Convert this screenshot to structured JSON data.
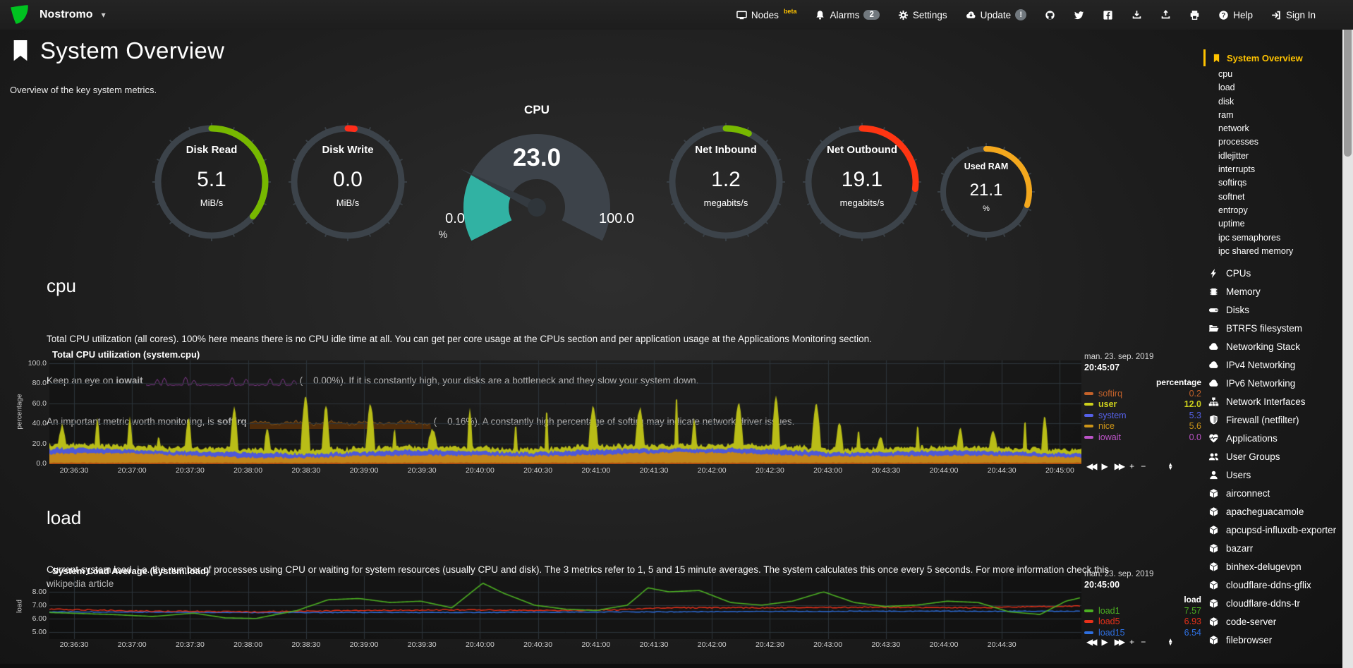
{
  "header": {
    "hostname": "Nostromo",
    "nav_items": [
      {
        "name": "nodes",
        "icon": "monitor-icon",
        "label": "Nodes",
        "sup": "beta"
      },
      {
        "name": "alarms",
        "icon": "bell-icon",
        "label": "Alarms",
        "badge": "2"
      },
      {
        "name": "settings",
        "icon": "gear-icon",
        "label": "Settings"
      },
      {
        "name": "update",
        "icon": "cloud-update-icon",
        "label": "Update",
        "badge": "!"
      },
      {
        "name": "github",
        "icon": "github-icon"
      },
      {
        "name": "twitter",
        "icon": "twitter-icon"
      },
      {
        "name": "facebook",
        "icon": "facebook-icon"
      },
      {
        "name": "import-snapshot",
        "icon": "download-icon"
      },
      {
        "name": "export-snapshot",
        "icon": "upload-icon"
      },
      {
        "name": "print",
        "icon": "print-icon"
      },
      {
        "name": "help",
        "icon": "question-icon",
        "label": "Help"
      },
      {
        "name": "signin",
        "icon": "signin-icon",
        "label": "Sign In"
      }
    ]
  },
  "page": {
    "title": "System Overview",
    "subtitle": "Overview of the key system metrics."
  },
  "gauges": [
    {
      "name": "disk-read",
      "title": "Disk Read",
      "value": "5.1",
      "unit": "MiB/s",
      "percent": 36,
      "color": "#77b800"
    },
    {
      "name": "disk-write",
      "title": "Disk Write",
      "value": "0.0",
      "unit": "MiB/s",
      "percent": 2,
      "color": "#ff2d1a"
    },
    {
      "name": "net-inbound",
      "title": "Net Inbound",
      "value": "1.2",
      "unit": "megabits/s",
      "percent": 7,
      "color": "#77b800"
    },
    {
      "name": "net-outbound",
      "title": "Net Outbound",
      "value": "19.1",
      "unit": "megabits/s",
      "percent": 27,
      "color": "#ff3512"
    },
    {
      "name": "used-ram",
      "title": "Used RAM",
      "value": "21.1",
      "unit": "%",
      "percent": 30,
      "color": "#f4a81d"
    }
  ],
  "cpu_gauge": {
    "title": "CPU",
    "value": "23.0",
    "min": "0.0",
    "max": "100.0",
    "unit": "%",
    "percent": 23,
    "fill_color": "#31b2a3"
  },
  "cpu_section": {
    "heading": "cpu",
    "line1": "Total CPU utilization (all cores). 100% here means there is no CPU idle time at all. You can get per core usage at the CPUs section and per application usage at the Applications Monitoring section.",
    "line2_pre": "Keep an eye on ",
    "line2_bold": "iowait",
    "line2_post": "(    0.00%). If it is constantly high, your disks are a bottleneck and they slow your system down.",
    "line3_pre": "An important metric worth monitoring, is ",
    "line3_bold": "softirq",
    "line3_post": "(    0.16%). A constantly high percentage of softirq may indicate network driver issues."
  },
  "load_section": {
    "heading": "load",
    "line1": "Current system load, i.e. the number of processes using CPU or waiting for system resources (usually CPU and disk). The 3 metrics refer to 1, 5 and 15 minute averages. The system calculates this once every 5 seconds. For more information check this wikipedia article"
  },
  "cpu_chart": {
    "title": "Total CPU utilization (system.cpu)",
    "date": "man. 23. sep. 2019",
    "time": "20:45:07",
    "unit_header": "percentage",
    "ylabel": "percentage",
    "y_ticks": [
      "100.0",
      "80.0",
      "60.0",
      "40.0",
      "20.0",
      "0.0"
    ],
    "x_ticks": [
      "20:36:30",
      "20:37:00",
      "20:37:30",
      "20:38:00",
      "20:38:30",
      "20:39:00",
      "20:39:30",
      "20:40:00",
      "20:40:30",
      "20:41:00",
      "20:41:30",
      "20:42:00",
      "20:42:30",
      "20:43:00",
      "20:43:30",
      "20:44:00",
      "20:44:30",
      "20:45:00"
    ],
    "legend": [
      {
        "label": "softirq",
        "value": "0.2",
        "color": "#c4622a"
      },
      {
        "label": "user",
        "value": "12.0",
        "color": "#cdd01c",
        "bold": true
      },
      {
        "label": "system",
        "value": "5.3",
        "color": "#5561e8"
      },
      {
        "label": "nice",
        "value": "5.6",
        "color": "#cc9418"
      },
      {
        "label": "iowait",
        "value": "0.0",
        "color": "#bc54c8"
      }
    ]
  },
  "load_chart": {
    "title": "System Load Average (system.load)",
    "date": "man. 23. sep. 2019",
    "time": "20:45:00",
    "unit_header": "load",
    "ylabel": "load",
    "y_ticks": [
      "8.00",
      "7.00",
      "6.00",
      "5.00"
    ],
    "x_ticks": [
      "20:36:30",
      "20:37:00",
      "20:37:30",
      "20:38:00",
      "20:38:30",
      "20:39:00",
      "20:39:30",
      "20:40:00",
      "20:40:30",
      "20:41:00",
      "20:41:30",
      "20:42:00",
      "20:42:30",
      "20:43:00",
      "20:43:30",
      "20:44:00",
      "20:44:30"
    ],
    "legend": [
      {
        "label": "load1",
        "value": "7.57",
        "color": "#4caf22"
      },
      {
        "label": "load5",
        "value": "6.93",
        "color": "#e8311a"
      },
      {
        "label": "load15",
        "value": "6.54",
        "color": "#2e6fdf"
      }
    ]
  },
  "toolbar_buttons": [
    "backward",
    "play",
    "forward",
    "zoom-in",
    "zoom-out",
    "resize"
  ],
  "sidebar": {
    "active": {
      "label": "System Overview",
      "icon": "bookmark-icon"
    },
    "sub_items": [
      "cpu",
      "load",
      "disk",
      "ram",
      "network",
      "processes",
      "idlejitter",
      "interrupts",
      "softirqs",
      "softnet",
      "entropy",
      "uptime",
      "ipc semaphores",
      "ipc shared memory"
    ],
    "menu_items": [
      {
        "label": "CPUs",
        "icon": "bolt-icon"
      },
      {
        "label": "Memory",
        "icon": "microchip-icon"
      },
      {
        "label": "Disks",
        "icon": "hdd-icon"
      },
      {
        "label": "BTRFS filesystem",
        "icon": "folder-open-icon"
      },
      {
        "label": "Networking Stack",
        "icon": "cloud-icon"
      },
      {
        "label": "IPv4 Networking",
        "icon": "cloud-icon"
      },
      {
        "label": "IPv6 Networking",
        "icon": "cloud-icon"
      },
      {
        "label": "Network Interfaces",
        "icon": "sitemap-icon"
      },
      {
        "label": "Firewall (netfilter)",
        "icon": "shield-icon"
      },
      {
        "label": "Applications",
        "icon": "heartbeat-icon"
      },
      {
        "label": "User Groups",
        "icon": "users-icon"
      },
      {
        "label": "Users",
        "icon": "user-icon"
      },
      {
        "label": "airconnect",
        "icon": "cube-icon"
      },
      {
        "label": "apacheguacamole",
        "icon": "cube-icon"
      },
      {
        "label": "apcupsd-influxdb-exporter",
        "icon": "cube-icon"
      },
      {
        "label": "bazarr",
        "icon": "cube-icon"
      },
      {
        "label": "binhex-delugevpn",
        "icon": "cube-icon"
      },
      {
        "label": "cloudflare-ddns-gflix",
        "icon": "cube-icon"
      },
      {
        "label": "cloudflare-ddns-tr",
        "icon": "cube-icon"
      },
      {
        "label": "code-server",
        "icon": "cube-icon"
      },
      {
        "label": "filebrowser",
        "icon": "cube-icon"
      }
    ]
  },
  "colors": {
    "accent_yellow": "#ffc300",
    "logo_green": "#00c220",
    "gauge_green": "#77b800",
    "gauge_red": "#ff3512",
    "gauge_orange": "#f4a81d",
    "cpu_gauge_fill": "#31b2a3",
    "badge_gray": "#71787e"
  },
  "chart_data": [
    {
      "type": "area",
      "stacked": true,
      "title": "Total CPU utilization (system.cpu)",
      "ylabel": "percentage",
      "ylim": [
        0,
        100
      ],
      "x_range": [
        "20:36:20",
        "20:45:07"
      ],
      "grid": true,
      "legend_position": "right",
      "series": [
        {
          "name": "softirq",
          "current": 0.2
        },
        {
          "name": "user",
          "current": 12.0
        },
        {
          "name": "system",
          "current": 5.3
        },
        {
          "name": "nice",
          "current": 5.6
        },
        {
          "name": "iowait",
          "current": 0.0
        }
      ]
    },
    {
      "type": "line",
      "title": "System Load Average (system.load)",
      "ylabel": "load",
      "ylim": [
        4.6,
        9.1
      ],
      "x_range": [
        "20:36:20",
        "20:45:00"
      ],
      "grid": true,
      "legend_position": "right",
      "series": [
        {
          "name": "load1",
          "current": 7.57
        },
        {
          "name": "load5",
          "current": 6.93
        },
        {
          "name": "load15",
          "current": 6.54
        }
      ]
    }
  ]
}
